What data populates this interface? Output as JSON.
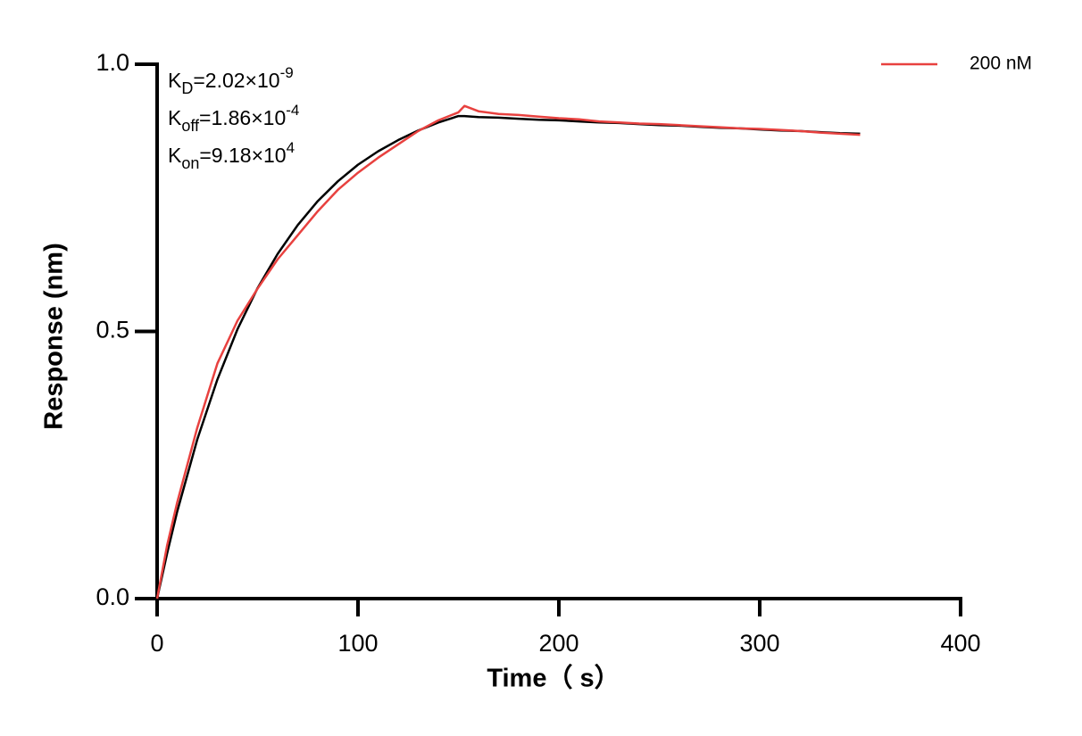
{
  "chart_data": {
    "type": "line",
    "x_label": "Time（ s）",
    "y_label": "Response (nm)",
    "xlim": [
      0,
      400
    ],
    "xticks": [
      0,
      100,
      200,
      300,
      400
    ],
    "ylim": [
      0,
      1
    ],
    "yticks": [
      {
        "value": 0,
        "label": "0.0"
      },
      0.5,
      {
        "value": 1,
        "label": "1.0"
      }
    ],
    "x": [
      0,
      5,
      10,
      20,
      30,
      40,
      50,
      60,
      70,
      80,
      90,
      100,
      110,
      120,
      130,
      140,
      150,
      153,
      160,
      170,
      180,
      190,
      200,
      210,
      220,
      230,
      240,
      250,
      260,
      270,
      280,
      290,
      300,
      310,
      320,
      330,
      340,
      350
    ],
    "series": [
      {
        "name": "200 nM",
        "color": "#e8413f",
        "values": [
          0,
          0.1,
          0.18,
          0.32,
          0.44,
          0.52,
          0.58,
          0.635,
          0.68,
          0.725,
          0.765,
          0.797,
          0.825,
          0.85,
          0.875,
          0.895,
          0.91,
          0.922,
          0.912,
          0.907,
          0.905,
          0.902,
          0.899,
          0.897,
          0.893,
          0.891,
          0.889,
          0.888,
          0.886,
          0.884,
          0.882,
          0.88,
          0.879,
          0.877,
          0.875,
          0.872,
          0.87,
          0.868
        ]
      },
      {
        "color": "#000000",
        "values": [
          0,
          0.085,
          0.163,
          0.298,
          0.41,
          0.504,
          0.581,
          0.645,
          0.699,
          0.744,
          0.781,
          0.812,
          0.837,
          0.858,
          0.876,
          0.891,
          0.903,
          0.903,
          0.901,
          0.9,
          0.898,
          0.896,
          0.895,
          0.893,
          0.891,
          0.89,
          0.888,
          0.886,
          0.885,
          0.883,
          0.881,
          0.88,
          0.878,
          0.876,
          0.875,
          0.873,
          0.871,
          0.87
        ]
      }
    ],
    "annotations": [
      {
        "base": "K",
        "sub": "D",
        "text": "=2.02×10",
        "sup": "-9"
      },
      {
        "base": "K",
        "sub": "off",
        "text": "=1.86×10",
        "sup": "-4"
      },
      {
        "base": "K",
        "sub": "on",
        "text": "=9.18×10",
        "sup": "4"
      }
    ],
    "legend": "top-right"
  }
}
